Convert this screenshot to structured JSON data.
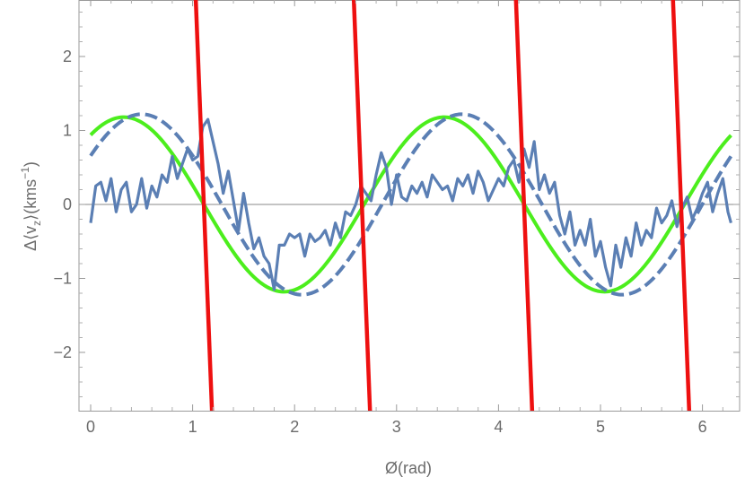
{
  "chart_data": {
    "type": "line",
    "xlabel": "Ø(rad)",
    "ylabel": {
      "prefix": "Δ⟨v",
      "sub": "z",
      "middle": "⟩(kms",
      "sup": "−1",
      "suffix": ")"
    },
    "xlim": [
      -0.2,
      6.4
    ],
    "ylim": [
      -2.8,
      2.8
    ],
    "xticks": [
      0,
      1,
      2,
      3,
      4,
      5,
      6
    ],
    "xtick_labels": [
      "0",
      "1",
      "2",
      "3",
      "4",
      "5",
      "6"
    ],
    "yticks": [
      -2,
      -1,
      0,
      1,
      2
    ],
    "ytick_labels": [
      "−2",
      "−1",
      "0",
      "1",
      "2"
    ],
    "grid": false,
    "zero_line": true,
    "series": [
      {
        "style": "solid",
        "color": "#4cee1d",
        "function": "1.18*sin(2x+0.92)",
        "description_values": {
          "amplitude": 1.18,
          "phase": 0.92,
          "frequency": 2
        }
      },
      {
        "style": "dashed",
        "color": "#5b7fb4",
        "function": "1.22*sin(2x+0.57)",
        "description_values": {
          "amplitude": 1.22,
          "phase": 0.57,
          "frequency": 2
        }
      },
      {
        "style": "solid",
        "color": "#5b7fb4",
        "x": [
          0,
          0.05,
          0.1,
          0.15,
          0.2,
          0.25,
          0.3,
          0.35,
          0.4,
          0.45,
          0.5,
          0.55,
          0.6,
          0.65,
          0.7,
          0.75,
          0.8,
          0.85,
          0.9,
          0.95,
          1.0,
          1.05,
          1.1,
          1.15,
          1.2,
          1.25,
          1.3,
          1.35,
          1.4,
          1.45,
          1.5,
          1.55,
          1.6,
          1.65,
          1.7,
          1.75,
          1.8,
          1.85,
          1.9,
          1.95,
          2.0,
          2.05,
          2.1,
          2.15,
          2.2,
          2.25,
          2.3,
          2.35,
          2.4,
          2.45,
          2.5,
          2.55,
          2.6,
          2.65,
          2.7,
          2.75,
          2.8,
          2.85,
          2.9,
          2.95,
          3.0,
          3.05,
          3.1,
          3.15,
          3.2,
          3.25,
          3.3,
          3.35,
          3.4,
          3.45,
          3.5,
          3.55,
          3.6,
          3.65,
          3.7,
          3.75,
          3.8,
          3.85,
          3.9,
          3.95,
          4.0,
          4.05,
          4.1,
          4.15,
          4.2,
          4.25,
          4.3,
          4.35,
          4.4,
          4.45,
          4.5,
          4.55,
          4.6,
          4.65,
          4.7,
          4.75,
          4.8,
          4.85,
          4.9,
          4.95,
          5.0,
          5.05,
          5.1,
          5.15,
          5.2,
          5.25,
          5.3,
          5.35,
          5.4,
          5.45,
          5.5,
          5.55,
          5.6,
          5.65,
          5.7,
          5.75,
          5.8,
          5.85,
          5.9,
          5.95,
          6.0,
          6.05,
          6.1,
          6.15,
          6.2,
          6.25,
          6.28
        ],
        "y": [
          -0.25,
          0.25,
          0.3,
          0.05,
          0.35,
          -0.1,
          0.2,
          0.3,
          -0.1,
          0.0,
          0.35,
          -0.05,
          0.25,
          0.1,
          0.4,
          0.3,
          0.65,
          0.35,
          0.55,
          0.75,
          0.6,
          0.65,
          1.05,
          1.15,
          0.85,
          0.55,
          0.15,
          0.45,
          0.05,
          -0.35,
          0.15,
          -0.25,
          -0.6,
          -0.45,
          -0.7,
          -0.8,
          -1.15,
          -0.55,
          -0.55,
          -0.4,
          -0.45,
          -0.4,
          -0.7,
          -0.4,
          -0.5,
          -0.45,
          -0.35,
          -0.55,
          -0.25,
          -0.45,
          -0.1,
          -0.15,
          0.0,
          0.25,
          0.15,
          0.05,
          0.4,
          0.7,
          0.5,
          0.0,
          0.4,
          0.1,
          0.05,
          0.25,
          0.15,
          0.3,
          0.1,
          0.4,
          0.3,
          0.2,
          0.25,
          0.05,
          0.35,
          0.25,
          0.4,
          0.15,
          0.45,
          0.3,
          0.05,
          0.2,
          0.35,
          0.25,
          0.5,
          0.6,
          0.3,
          0.75,
          0.5,
          0.85,
          0.2,
          0.4,
          0.15,
          0.3,
          -0.15,
          -0.4,
          -0.1,
          -0.55,
          -0.35,
          -0.55,
          -0.2,
          -0.7,
          -0.5,
          -0.85,
          -1.1,
          -0.55,
          -0.85,
          -0.45,
          -0.7,
          -0.25,
          -0.55,
          -0.35,
          -0.45,
          -0.05,
          -0.25,
          -0.15,
          0.05,
          -0.3,
          -0.05,
          0.1,
          -0.2,
          -0.05,
          0.15,
          0.3,
          -0.1,
          0.15,
          0.35,
          -0.1,
          -0.25
        ]
      },
      {
        "style": "solid",
        "color": "#ee1010",
        "function": "-36*sin(2x-0.15) / (cos(2x-0.15)^2+0.02) ; steep lines crossing zero",
        "zero_crossings": [
          1.11,
          2.66,
          4.25,
          5.79
        ],
        "slope": -35
      }
    ]
  }
}
